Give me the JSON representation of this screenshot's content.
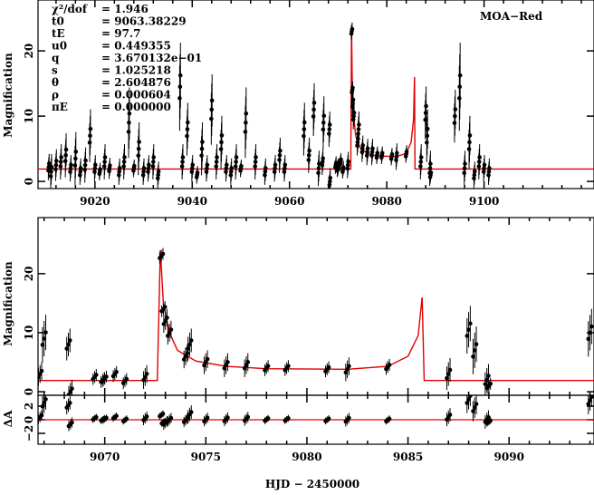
{
  "chart_data": {
    "type": "scatter",
    "title": "",
    "label": "MOA−Red",
    "xlabel": "HJD − 2450000",
    "ylabel_main": "Magnification",
    "ylabel_resid": "ΔA",
    "panels": {
      "top": {
        "xlim": [
          9008.3,
          9122.6
        ],
        "ylim": [
          -1.1,
          27.8
        ],
        "xticks": [
          9020,
          9040,
          9060,
          9080,
          9100
        ],
        "yticks": [
          0,
          10,
          20
        ]
      },
      "zoom": {
        "xlim": [
          9066.7,
          9094.2
        ],
        "ylim": [
          -0.6,
          29.5
        ],
        "xticks": [
          9070,
          9075,
          9080,
          9085,
          9090
        ],
        "yticks": [
          0,
          10,
          20
        ]
      },
      "resid": {
        "ylim": [
          -3.6,
          3.6
        ],
        "yticks": [
          -2,
          0,
          2
        ],
        "ytick_labels": [
          "−2",
          "0",
          "2"
        ]
      }
    },
    "parameters": [
      {
        "name": "χ²/dof",
        "value": "= 1.946"
      },
      {
        "name": "t0",
        "value": "= 9063.38229"
      },
      {
        "name": "tE",
        "value": "= 97.7"
      },
      {
        "name": "u0",
        "value": "= 0.449355"
      },
      {
        "name": "q",
        "value": "= 3.670132e−01"
      },
      {
        "name": "s",
        "value": "= 1.025218"
      },
      {
        "name": "θ",
        "value": "= 2.604876"
      },
      {
        "name": "ρ",
        "value": "= 0.000604"
      },
      {
        "name": "πE",
        "value": "= 0.000000"
      }
    ],
    "model": {
      "color": "#e00000",
      "x": [
        9008,
        9072.6,
        9072.75,
        9072.9,
        9073.2,
        9073.6,
        9074.5,
        9076,
        9078,
        9082,
        9084,
        9085,
        9085.5,
        9085.7,
        9085.8,
        9123
      ],
      "y": [
        1.9,
        1.9,
        24,
        15,
        10,
        7,
        5.2,
        4.3,
        3.9,
        3.8,
        4.3,
        6,
        9.5,
        16,
        1.9,
        1.9
      ]
    },
    "data": {
      "t": [
        9010.5,
        9011,
        9012,
        9013,
        9014,
        9015,
        9016,
        9017,
        9018,
        9019,
        9020,
        9021,
        9022,
        9023,
        9025,
        9026,
        9027,
        9028,
        9029,
        9030,
        9031,
        9032,
        9033,
        9037.5,
        9038,
        9039,
        9040,
        9041,
        9042,
        9043,
        9044,
        9045,
        9046,
        9047,
        9048,
        9049,
        9050,
        9051,
        9053,
        9055,
        9057,
        9058,
        9059,
        9063,
        9064,
        9065,
        9066,
        9066.8,
        9067,
        9068.2,
        9068.3,
        9069.5,
        9069.9,
        9070,
        9070.5,
        9071,
        9072,
        9072.8,
        9072.9,
        9073,
        9073.2,
        9074,
        9074.2,
        9075,
        9076,
        9077,
        9078,
        9079,
        9081,
        9082,
        9084,
        9087,
        9088,
        9088.3,
        9088.9,
        9089,
        9094,
        9095,
        9096,
        9097,
        9098,
        9099,
        9100,
        9101
      ],
      "A": [
        2.2,
        1.5,
        2.5,
        3,
        4,
        2,
        3.5,
        1.5,
        2.5,
        7,
        2,
        1.5,
        3,
        2,
        1.5,
        3,
        9,
        2,
        5,
        1.5,
        2,
        3,
        1,
        14.5,
        3,
        8,
        2,
        1,
        5,
        2,
        11,
        3,
        6,
        2,
        1.5,
        3,
        2,
        9,
        3,
        1.5,
        2,
        4,
        2,
        8,
        4,
        11,
        2,
        3,
        9,
        8,
        0,
        2.5,
        2,
        2.2,
        3,
        1.8,
        2.5,
        23,
        14,
        12,
        10,
        6,
        8,
        5,
        4.5,
        4.5,
        4,
        4,
        3.8,
        3.8,
        4.2,
        3,
        10.5,
        7,
        2,
        1,
        10,
        14.5,
        2,
        6,
        1,
        3,
        2,
        1.5
      ],
      "err": [
        1.5,
        2,
        1.8,
        2,
        2.5,
        1.5,
        3,
        1.5,
        2,
        3,
        1.5,
        1,
        2,
        1.2,
        1.5,
        2,
        4,
        1,
        3,
        1.5,
        1.5,
        2,
        1.5,
        5,
        2,
        3,
        1.5,
        1,
        3,
        1.5,
        4,
        2,
        3,
        1.5,
        1.5,
        2,
        1,
        4,
        2,
        1.5,
        1.5,
        2,
        1.5,
        3,
        2,
        3,
        2,
        1.5,
        3,
        2,
        1.5,
        1,
        1,
        1,
        1,
        1,
        1.5,
        1,
        1,
        1.5,
        1.5,
        1.5,
        2,
        1.5,
        1.5,
        1.5,
        1,
        1,
        1,
        1.5,
        1,
        2,
        3,
        3,
        2,
        1,
        3,
        5,
        2,
        3,
        1.5,
        2,
        1.5,
        1.5
      ]
    }
  }
}
